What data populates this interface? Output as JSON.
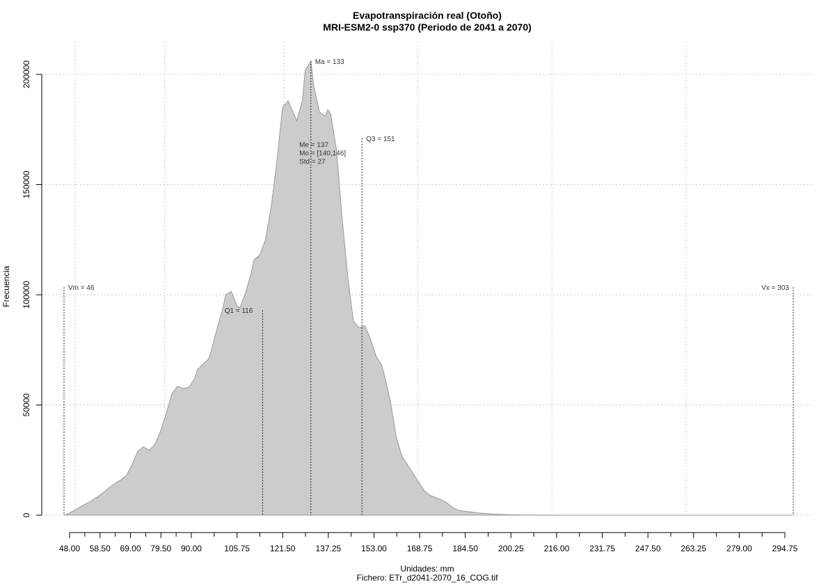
{
  "chart_data": {
    "type": "area",
    "title": "Evapotranspiración real (Otoño)",
    "subtitle": "MRI-ESM2-0 ssp370 (Periodo de 2041 a 2070)",
    "xlabel": "Unidades: mm",
    "caption": "Fichero: ETr_d2041-2070_16_COG.tif",
    "ylabel": "Frecuencia",
    "xlim": [
      46,
      303
    ],
    "ylim": [
      0,
      205000
    ],
    "x_ticks": [
      48.0,
      58.5,
      69.0,
      79.5,
      90.0,
      105.75,
      121.5,
      137.25,
      153.0,
      168.75,
      184.5,
      200.25,
      216.0,
      231.75,
      247.5,
      263.25,
      279.0,
      294.75
    ],
    "x_tick_labels": [
      "48.00",
      "58.50",
      "69.00",
      "79.50",
      "90.00",
      "105.75",
      "121.50",
      "137.25",
      "153.00",
      "168.75",
      "184.50",
      "200.25",
      "216.00",
      "231.75",
      "247.50",
      "263.25",
      "279.00",
      "294.75"
    ],
    "y_ticks": [
      0,
      50000,
      100000,
      150000,
      200000
    ],
    "y_tick_labels": [
      "0",
      "50000",
      "100000",
      "150000",
      "200000"
    ],
    "grid": true,
    "fill_color": "#cccccc",
    "line_color": "#999999",
    "density": {
      "x": [
        46,
        48,
        50,
        52,
        55,
        58,
        61,
        64,
        66,
        68,
        70,
        72,
        74,
        76,
        78,
        80,
        82,
        84,
        86,
        88,
        90,
        92,
        93,
        95,
        97,
        98,
        100,
        102,
        103,
        105,
        107,
        108,
        110,
        112,
        113,
        115,
        117,
        119,
        121,
        123,
        125,
        127,
        128,
        130,
        131,
        133,
        134,
        136,
        138,
        139,
        140,
        142,
        144,
        146,
        148,
        150,
        152,
        154,
        156,
        158,
        159,
        161,
        163,
        165,
        167,
        169,
        171,
        173,
        175,
        177,
        179,
        181,
        183,
        185,
        187,
        189,
        191,
        193,
        195,
        197,
        199,
        201,
        203,
        205,
        208,
        212,
        217,
        225,
        240,
        260,
        280,
        300,
        303
      ],
      "y": [
        0,
        1000,
        2500,
        4000,
        6000,
        8500,
        11500,
        14500,
        16000,
        18000,
        23000,
        29000,
        31000,
        29500,
        32000,
        38000,
        46000,
        55000,
        58500,
        57500,
        58000,
        62000,
        66000,
        68500,
        71000,
        75000,
        85000,
        94000,
        100000,
        101500,
        95000,
        94000,
        101000,
        110000,
        116000,
        118000,
        125000,
        140000,
        160000,
        185000,
        188000,
        182000,
        179000,
        188000,
        202000,
        206000,
        195000,
        183000,
        181000,
        184000,
        182000,
        166000,
        135000,
        108000,
        88000,
        85000,
        86000,
        80000,
        72000,
        68000,
        63000,
        52000,
        36000,
        27000,
        23000,
        19000,
        15000,
        11000,
        9000,
        8000,
        7000,
        5500,
        3500,
        2200,
        1800,
        1500,
        1200,
        900,
        700,
        500,
        400,
        300,
        200,
        150,
        100,
        60,
        30,
        10,
        5,
        3,
        2,
        1,
        0
      ]
    },
    "annotations": [
      {
        "label": "Vm = 46",
        "x": 46,
        "top": 103500
      },
      {
        "label": "Q1 = 116",
        "x": 116,
        "top": 93000
      },
      {
        "label": "Ma = 133",
        "x": 133,
        "top": 206000
      },
      {
        "label": "Q3 = 151",
        "x": 151,
        "top": 171000
      },
      {
        "label": "Vx = 303",
        "x": 303,
        "top": 103500
      }
    ],
    "stats": {
      "median_label": "Me = 137",
      "mode_label": "Mo = [140,146]",
      "std_label": "Std = 27",
      "median_x": 137,
      "median_y": 167000
    }
  }
}
